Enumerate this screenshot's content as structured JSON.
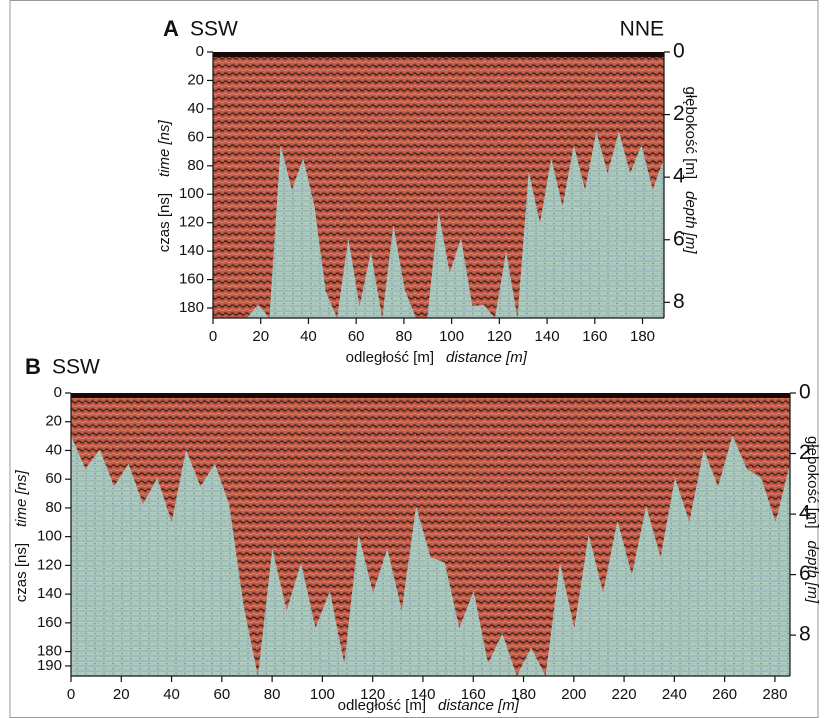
{
  "chart_data": [
    {
      "type": "radargram",
      "panel": "A",
      "left_label": "SSW",
      "right_label": "NNE",
      "xlabel": "odległość [m]",
      "xlabel_en": "distance [m]",
      "ylabel": "czas [ns]",
      "ylabel_en": "time [ns]",
      "y2label": "głębokość [m]",
      "y2label_en": "depth [m]",
      "xlim": [
        0,
        189
      ],
      "xticks": [
        0,
        20,
        40,
        60,
        80,
        100,
        120,
        140,
        160,
        180
      ],
      "ylim": [
        0,
        187
      ],
      "yticks": [
        0,
        20,
        40,
        60,
        80,
        100,
        120,
        140,
        160,
        180
      ],
      "y2lim": [
        0,
        8.5
      ],
      "y2ticks": [
        0,
        2,
        4,
        6,
        8
      ]
    },
    {
      "type": "radargram",
      "panel": "B",
      "left_label": "SSW",
      "xlabel": "odległość [m]",
      "xlabel_en": "distance [m]",
      "ylabel": "czas [ns]",
      "ylabel_en": "time [ns]",
      "y2label": "głębokość [m]",
      "y2label_en": "depth [m]",
      "xlim": [
        0,
        286
      ],
      "xticks": [
        0,
        20,
        40,
        60,
        80,
        100,
        120,
        140,
        160,
        180,
        200,
        220,
        240,
        260,
        280
      ],
      "ylim": [
        0,
        197
      ],
      "yticks": [
        0,
        20,
        40,
        60,
        80,
        100,
        120,
        140,
        160,
        180,
        190
      ],
      "y2lim": [
        0,
        9.35
      ],
      "y2ticks": [
        0,
        2,
        4,
        6,
        8
      ]
    }
  ]
}
